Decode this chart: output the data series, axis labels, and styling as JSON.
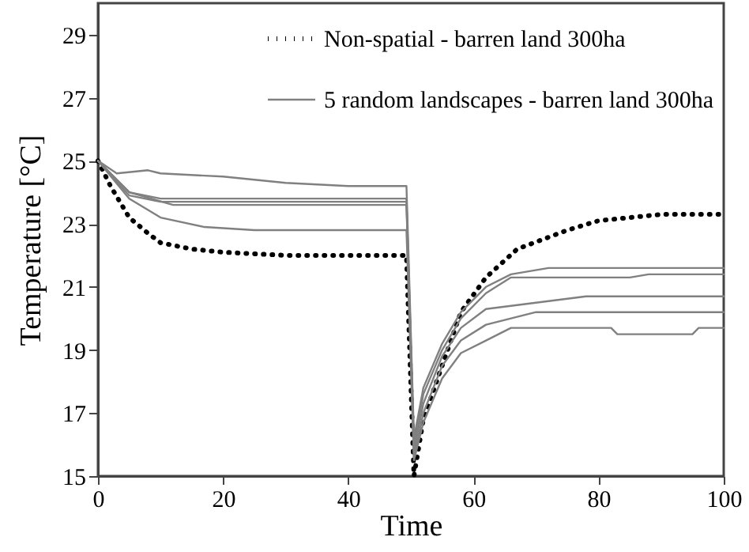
{
  "chart_data": {
    "type": "line",
    "xlabel": "Time",
    "ylabel": "Temperature [°C]",
    "xlim": [
      0,
      100
    ],
    "xticks": [
      0,
      20,
      40,
      60,
      80,
      100
    ],
    "ylim": [
      15,
      30
    ],
    "yticks": [
      15,
      17,
      19,
      21,
      23,
      25,
      27,
      29
    ],
    "grid": false,
    "legend": "top right",
    "marker": "none",
    "series": [
      {
        "name": "Non-spatial - barren land 300ha",
        "color": "#000000",
        "line_style": "dotted",
        "x": [
          0,
          2,
          5,
          8,
          10,
          15,
          20,
          30,
          40,
          49.3,
          50.5,
          52,
          55,
          58,
          62,
          67,
          75,
          80,
          90,
          100
        ],
        "values": [
          25,
          24.2,
          23.2,
          22.7,
          22.4,
          22.2,
          22.1,
          22,
          22,
          22,
          15,
          16.8,
          18.5,
          20.2,
          21.3,
          22.2,
          22.8,
          23.1,
          23.3,
          23.3
        ]
      },
      {
        "name": "5 random landscapes - barren land 300ha",
        "color": "#808080",
        "line_style": "solid",
        "x": [
          0,
          3,
          8,
          10,
          20,
          30,
          40,
          49.3,
          50.5,
          52,
          55,
          58,
          62,
          66,
          72,
          100
        ],
        "values": [
          25,
          24.6,
          24.7,
          24.6,
          24.5,
          24.3,
          24.2,
          24.2,
          16.2,
          17.8,
          19.2,
          20.2,
          21,
          21.4,
          21.6,
          21.6
        ]
      },
      {
        "color": "#808080",
        "line_style": "solid",
        "x": [
          0,
          5,
          10,
          30,
          49.3,
          50.5,
          52,
          55,
          58,
          62,
          66,
          70,
          85,
          88,
          100
        ],
        "values": [
          25,
          24,
          23.8,
          23.8,
          23.8,
          16,
          17.6,
          19,
          20,
          20.8,
          21.3,
          21.3,
          21.3,
          21.4,
          21.4
        ]
      },
      {
        "color": "#808080",
        "line_style": "solid",
        "x": [
          0,
          5,
          10,
          30,
          49.3,
          50.5,
          52,
          55,
          58,
          62,
          70,
          78,
          100
        ],
        "values": [
          25,
          23.9,
          23.7,
          23.7,
          23.7,
          15.8,
          17.3,
          18.8,
          19.7,
          20.3,
          20.5,
          20.7,
          20.7
        ]
      },
      {
        "color": "#808080",
        "line_style": "solid",
        "x": [
          0,
          5,
          12,
          30,
          49.3,
          50.5,
          52,
          55,
          58,
          62,
          70,
          100
        ],
        "values": [
          25,
          24,
          23.6,
          23.6,
          23.6,
          15.6,
          17,
          18.5,
          19.3,
          19.8,
          20.2,
          20.2
        ]
      },
      {
        "color": "#808080",
        "line_style": "solid",
        "x": [
          0,
          5,
          10,
          17,
          25,
          49.3,
          50.5,
          52,
          55,
          58,
          62,
          66,
          82,
          83,
          95,
          96,
          100
        ],
        "values": [
          25,
          23.8,
          23.2,
          22.9,
          22.8,
          22.8,
          15.5,
          16.7,
          18.1,
          18.9,
          19.3,
          19.7,
          19.7,
          19.5,
          19.5,
          19.7,
          19.7
        ]
      }
    ]
  }
}
